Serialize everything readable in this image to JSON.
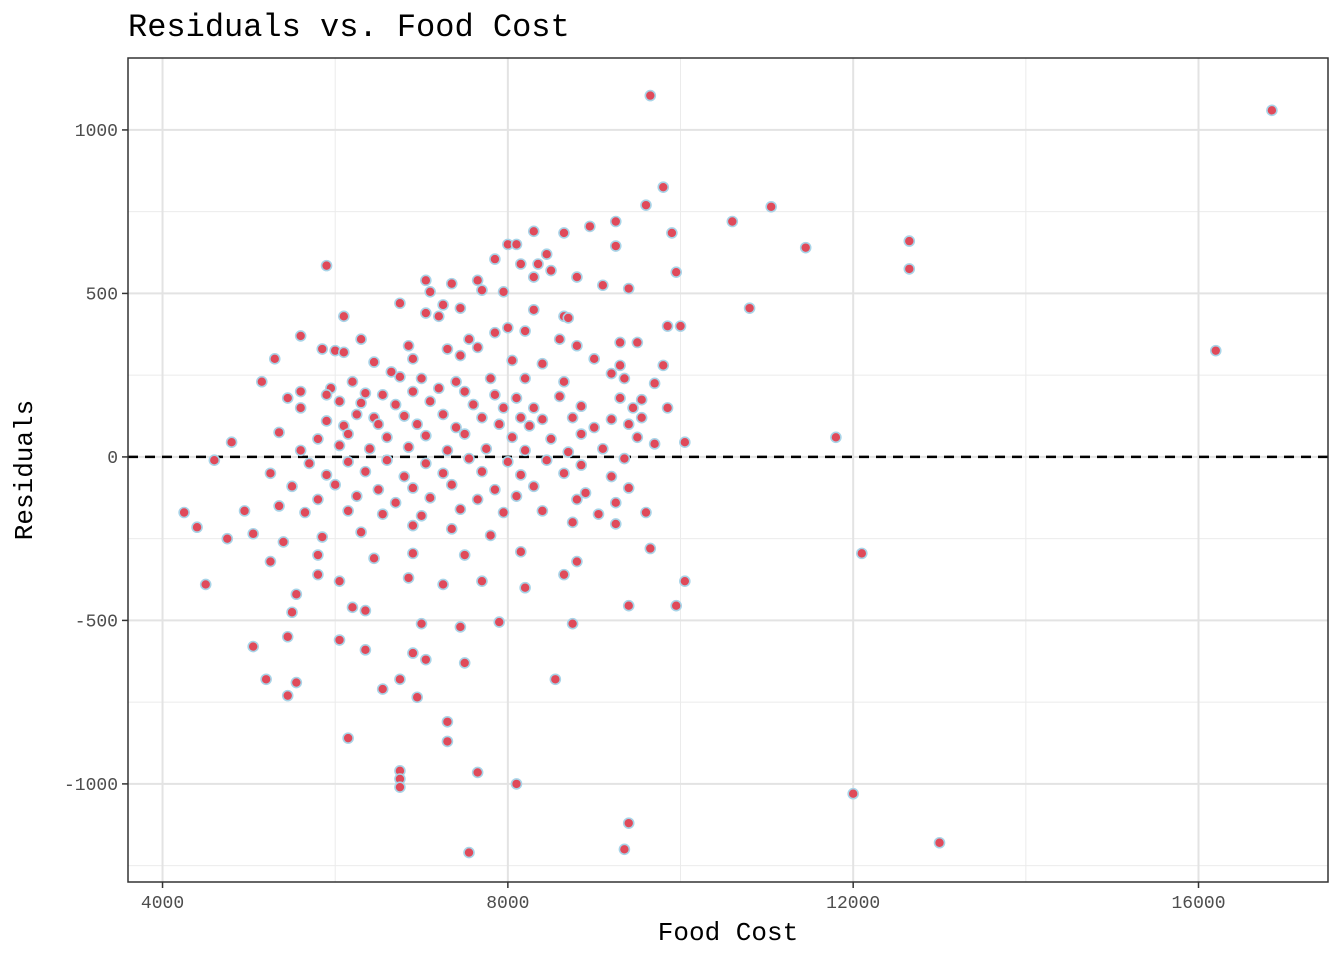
{
  "chart_data": {
    "type": "scatter",
    "title": "Residuals vs. Food Cost",
    "xlabel": "Food Cost",
    "ylabel": "Residuals",
    "xlim": [
      3600,
      17500
    ],
    "ylim": [
      -1300,
      1220
    ],
    "x_ticks": [
      4000,
      8000,
      12000,
      16000
    ],
    "x_tick_labels": [
      "4000",
      "8000",
      "12000",
      "16000"
    ],
    "y_ticks": [
      1000,
      500,
      0,
      -500,
      -1000
    ],
    "y_tick_labels": [
      "1000",
      "500",
      "0",
      "-500",
      "-1000"
    ],
    "reference_line": {
      "y": 0,
      "style": "dashed",
      "color": "#000000"
    },
    "grid": true,
    "point_fill": "#e04a5a",
    "point_stroke": "#a8d4e8",
    "background": "#ffffff",
    "grid_color": "#ebebeb",
    "points": [
      [
        9650,
        1105
      ],
      [
        16850,
        1060
      ],
      [
        9800,
        825
      ],
      [
        11050,
        765
      ],
      [
        9600,
        770
      ],
      [
        10600,
        720
      ],
      [
        9250,
        720
      ],
      [
        8950,
        705
      ],
      [
        8300,
        690
      ],
      [
        8650,
        685
      ],
      [
        9900,
        685
      ],
      [
        12650,
        660
      ],
      [
        8000,
        650
      ],
      [
        8100,
        650
      ],
      [
        9250,
        645
      ],
      [
        11450,
        640
      ],
      [
        8450,
        620
      ],
      [
        7850,
        605
      ],
      [
        8150,
        590
      ],
      [
        8350,
        590
      ],
      [
        5900,
        585
      ],
      [
        12650,
        575
      ],
      [
        9950,
        565
      ],
      [
        8500,
        570
      ],
      [
        8300,
        550
      ],
      [
        8800,
        550
      ],
      [
        7650,
        540
      ],
      [
        7050,
        540
      ],
      [
        7350,
        530
      ],
      [
        9100,
        525
      ],
      [
        7700,
        510
      ],
      [
        7950,
        505
      ],
      [
        9400,
        515
      ],
      [
        7100,
        505
      ],
      [
        10800,
        455
      ],
      [
        7250,
        465
      ],
      [
        6750,
        470
      ],
      [
        7450,
        455
      ],
      [
        8300,
        450
      ],
      [
        7050,
        440
      ],
      [
        6100,
        430
      ],
      [
        7200,
        430
      ],
      [
        8650,
        430
      ],
      [
        8700,
        425
      ],
      [
        9850,
        400
      ],
      [
        10000,
        400
      ],
      [
        8000,
        395
      ],
      [
        8200,
        385
      ],
      [
        7850,
        380
      ],
      [
        5600,
        370
      ],
      [
        6300,
        360
      ],
      [
        7550,
        360
      ],
      [
        8600,
        360
      ],
      [
        9300,
        350
      ],
      [
        9500,
        350
      ],
      [
        16200,
        325
      ],
      [
        5850,
        330
      ],
      [
        6000,
        325
      ],
      [
        6100,
        320
      ],
      [
        6850,
        340
      ],
      [
        7300,
        330
      ],
      [
        7650,
        335
      ],
      [
        8800,
        340
      ],
      [
        9300,
        280
      ],
      [
        9800,
        280
      ],
      [
        5300,
        300
      ],
      [
        6450,
        290
      ],
      [
        6900,
        300
      ],
      [
        7450,
        310
      ],
      [
        8050,
        295
      ],
      [
        8400,
        285
      ],
      [
        9000,
        300
      ],
      [
        9200,
        255
      ],
      [
        5150,
        230
      ],
      [
        5600,
        200
      ],
      [
        5950,
        210
      ],
      [
        6200,
        230
      ],
      [
        6650,
        260
      ],
      [
        6750,
        245
      ],
      [
        7000,
        240
      ],
      [
        7400,
        230
      ],
      [
        7800,
        240
      ],
      [
        8200,
        240
      ],
      [
        8650,
        230
      ],
      [
        9350,
        240
      ],
      [
        9700,
        225
      ],
      [
        5450,
        180
      ],
      [
        5900,
        190
      ],
      [
        6350,
        195
      ],
      [
        6550,
        190
      ],
      [
        6900,
        200
      ],
      [
        7200,
        210
      ],
      [
        7500,
        200
      ],
      [
        7850,
        190
      ],
      [
        8100,
        180
      ],
      [
        8600,
        185
      ],
      [
        9300,
        180
      ],
      [
        9550,
        175
      ],
      [
        6050,
        170
      ],
      [
        6300,
        165
      ],
      [
        6700,
        160
      ],
      [
        7100,
        170
      ],
      [
        7600,
        160
      ],
      [
        7950,
        150
      ],
      [
        8300,
        150
      ],
      [
        8850,
        155
      ],
      [
        9450,
        150
      ],
      [
        9850,
        150
      ],
      [
        5600,
        150
      ],
      [
        6250,
        130
      ],
      [
        6450,
        120
      ],
      [
        6800,
        125
      ],
      [
        7250,
        130
      ],
      [
        7700,
        120
      ],
      [
        8150,
        120
      ],
      [
        8400,
        115
      ],
      [
        8750,
        120
      ],
      [
        9200,
        115
      ],
      [
        9550,
        120
      ],
      [
        5900,
        110
      ],
      [
        6100,
        95
      ],
      [
        6500,
        100
      ],
      [
        6950,
        100
      ],
      [
        7400,
        90
      ],
      [
        7900,
        100
      ],
      [
        8250,
        95
      ],
      [
        9000,
        90
      ],
      [
        9400,
        100
      ],
      [
        5350,
        75
      ],
      [
        5800,
        55
      ],
      [
        6150,
        70
      ],
      [
        6600,
        60
      ],
      [
        7050,
        65
      ],
      [
        7500,
        70
      ],
      [
        8050,
        60
      ],
      [
        8500,
        55
      ],
      [
        8850,
        70
      ],
      [
        9500,
        60
      ],
      [
        10050,
        45
      ],
      [
        11800,
        60
      ],
      [
        4800,
        45
      ],
      [
        5600,
        20
      ],
      [
        6050,
        35
      ],
      [
        6400,
        25
      ],
      [
        6850,
        30
      ],
      [
        7300,
        20
      ],
      [
        7750,
        25
      ],
      [
        8200,
        20
      ],
      [
        8700,
        15
      ],
      [
        9100,
        25
      ],
      [
        9700,
        40
      ],
      [
        4600,
        -10
      ],
      [
        5700,
        -20
      ],
      [
        6150,
        -15
      ],
      [
        6600,
        -10
      ],
      [
        7050,
        -20
      ],
      [
        7550,
        -5
      ],
      [
        8000,
        -15
      ],
      [
        8450,
        -10
      ],
      [
        8850,
        -25
      ],
      [
        9350,
        -5
      ],
      [
        5250,
        -50
      ],
      [
        5900,
        -55
      ],
      [
        6350,
        -45
      ],
      [
        6800,
        -60
      ],
      [
        7250,
        -50
      ],
      [
        7700,
        -45
      ],
      [
        8150,
        -55
      ],
      [
        8650,
        -50
      ],
      [
        9200,
        -60
      ],
      [
        5500,
        -90
      ],
      [
        6000,
        -85
      ],
      [
        6500,
        -100
      ],
      [
        6900,
        -95
      ],
      [
        7350,
        -85
      ],
      [
        7850,
        -100
      ],
      [
        8300,
        -90
      ],
      [
        8900,
        -110
      ],
      [
        9400,
        -95
      ],
      [
        5800,
        -130
      ],
      [
        6250,
        -120
      ],
      [
        6700,
        -140
      ],
      [
        7100,
        -125
      ],
      [
        7650,
        -130
      ],
      [
        8100,
        -120
      ],
      [
        8800,
        -130
      ],
      [
        9250,
        -140
      ],
      [
        4950,
        -165
      ],
      [
        5350,
        -150
      ],
      [
        5650,
        -170
      ],
      [
        6150,
        -165
      ],
      [
        6550,
        -175
      ],
      [
        7000,
        -180
      ],
      [
        7450,
        -160
      ],
      [
        7950,
        -170
      ],
      [
        8400,
        -165
      ],
      [
        9050,
        -175
      ],
      [
        9600,
        -170
      ],
      [
        4250,
        -170
      ],
      [
        4400,
        -215
      ],
      [
        5050,
        -235
      ],
      [
        5400,
        -260
      ],
      [
        5850,
        -245
      ],
      [
        6300,
        -230
      ],
      [
        6900,
        -210
      ],
      [
        7350,
        -220
      ],
      [
        7800,
        -240
      ],
      [
        8750,
        -200
      ],
      [
        9250,
        -205
      ],
      [
        4750,
        -250
      ],
      [
        5250,
        -320
      ],
      [
        5800,
        -300
      ],
      [
        6450,
        -310
      ],
      [
        6900,
        -295
      ],
      [
        7500,
        -300
      ],
      [
        8150,
        -290
      ],
      [
        8800,
        -320
      ],
      [
        9650,
        -280
      ],
      [
        12100,
        -295
      ],
      [
        4500,
        -390
      ],
      [
        5550,
        -420
      ],
      [
        5800,
        -360
      ],
      [
        6050,
        -380
      ],
      [
        6850,
        -370
      ],
      [
        7250,
        -390
      ],
      [
        7700,
        -380
      ],
      [
        8200,
        -400
      ],
      [
        8650,
        -360
      ],
      [
        10050,
        -380
      ],
      [
        5500,
        -475
      ],
      [
        6200,
        -460
      ],
      [
        6350,
        -470
      ],
      [
        7000,
        -510
      ],
      [
        7450,
        -520
      ],
      [
        7900,
        -505
      ],
      [
        8750,
        -510
      ],
      [
        9400,
        -455
      ],
      [
        9950,
        -455
      ],
      [
        5050,
        -580
      ],
      [
        5450,
        -550
      ],
      [
        6050,
        -560
      ],
      [
        6350,
        -590
      ],
      [
        6900,
        -600
      ],
      [
        7050,
        -620
      ],
      [
        7500,
        -630
      ],
      [
        8550,
        -680
      ],
      [
        5200,
        -680
      ],
      [
        5450,
        -730
      ],
      [
        5550,
        -690
      ],
      [
        6550,
        -710
      ],
      [
        6750,
        -680
      ],
      [
        6950,
        -735
      ],
      [
        6150,
        -860
      ],
      [
        7300,
        -810
      ],
      [
        7300,
        -870
      ],
      [
        6750,
        -960
      ],
      [
        6750,
        -985
      ],
      [
        6750,
        -1010
      ],
      [
        7650,
        -965
      ],
      [
        8100,
        -1000
      ],
      [
        12000,
        -1030
      ],
      [
        9400,
        -1120
      ],
      [
        9350,
        -1200
      ],
      [
        7550,
        -1210
      ],
      [
        13000,
        -1180
      ]
    ]
  }
}
